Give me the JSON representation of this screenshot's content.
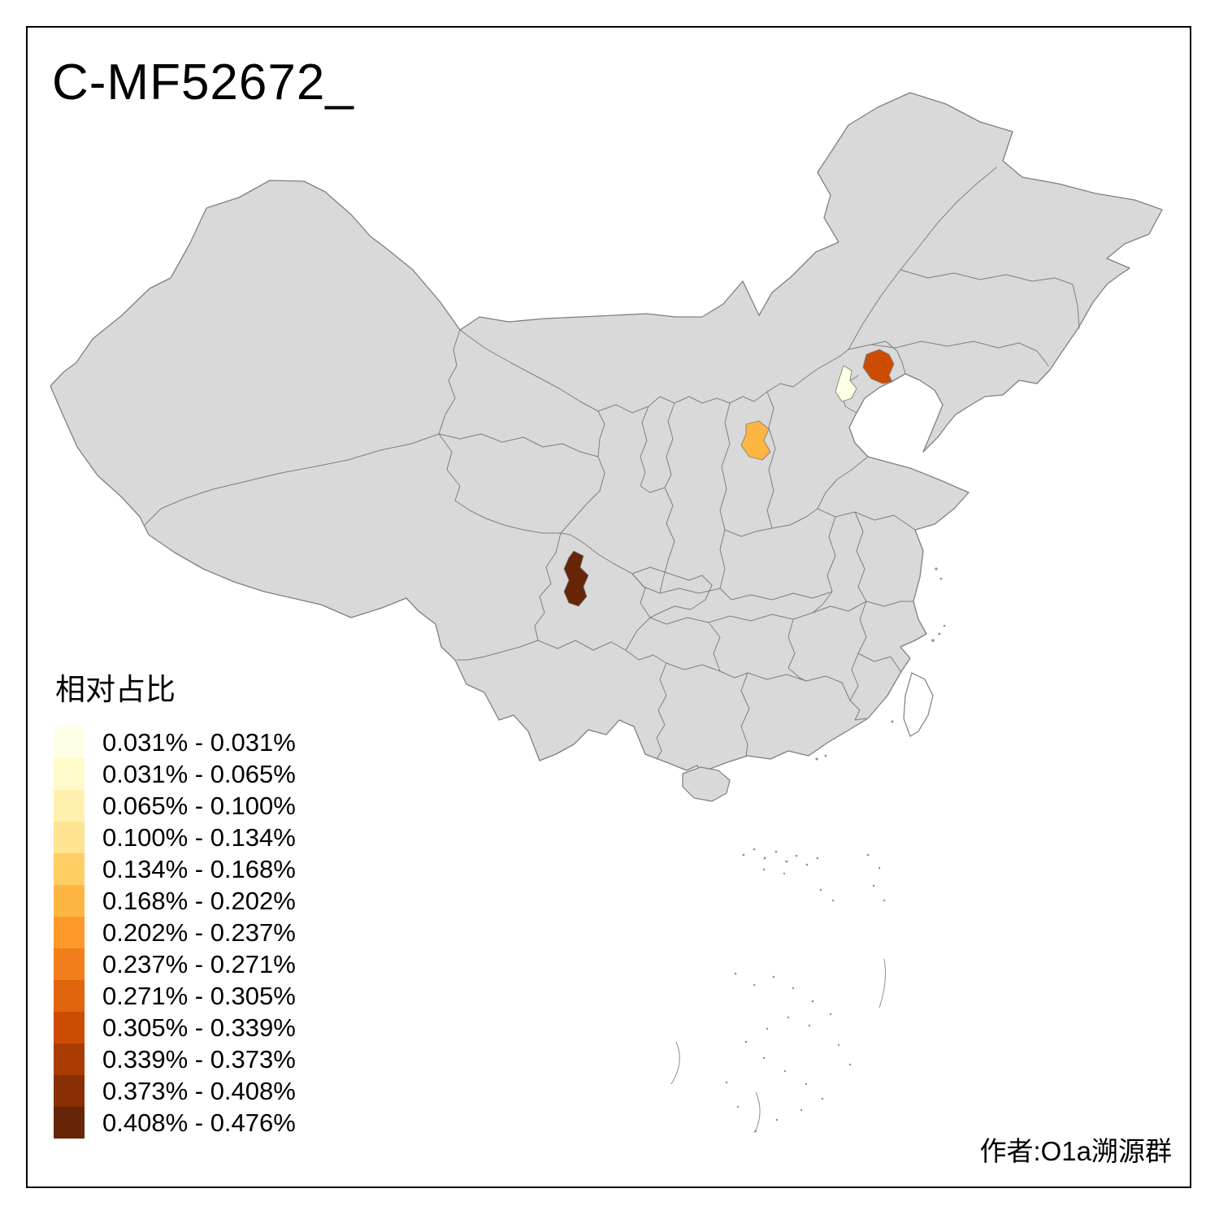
{
  "title": "C-MF52672_",
  "attribution": "作者:O1a溯源群",
  "legend": {
    "title": "相对占比",
    "bins": [
      {
        "color": "#FFFFE5",
        "label": "0.031% - 0.031%"
      },
      {
        "color": "#FFFACA",
        "label": "0.031% - 0.065%"
      },
      {
        "color": "#FFF0AE",
        "label": "0.065% - 0.100%"
      },
      {
        "color": "#FEE391",
        "label": "0.100% - 0.134%"
      },
      {
        "color": "#FECE65",
        "label": "0.134% - 0.168%"
      },
      {
        "color": "#FEB642",
        "label": "0.168% - 0.202%"
      },
      {
        "color": "#FE9929",
        "label": "0.202% - 0.237%"
      },
      {
        "color": "#F27E1B",
        "label": "0.237% - 0.271%"
      },
      {
        "color": "#E1640E",
        "label": "0.271% - 0.305%"
      },
      {
        "color": "#CC4C02",
        "label": "0.305% - 0.339%"
      },
      {
        "color": "#AA3C03",
        "label": "0.339% - 0.373%"
      },
      {
        "color": "#882F05",
        "label": "0.373% - 0.408%"
      },
      {
        "color": "#662506",
        "label": "0.408% - 0.476%"
      }
    ]
  },
  "map": {
    "land_fill": "#D9D9D9",
    "border_color": "#7F7F7F",
    "highlights": [
      {
        "id": "highlight-north-small",
        "color": "#FFFFE5",
        "bin": "0.031% - 0.031%"
      },
      {
        "id": "highlight-bohai-coast",
        "color": "#CC4C02",
        "bin": "0.305% - 0.339%"
      },
      {
        "id": "highlight-central-north",
        "color": "#FEB642",
        "bin": "0.168% - 0.202%"
      },
      {
        "id": "highlight-southwest",
        "color": "#662506",
        "bin": "0.408% - 0.476%"
      }
    ]
  }
}
